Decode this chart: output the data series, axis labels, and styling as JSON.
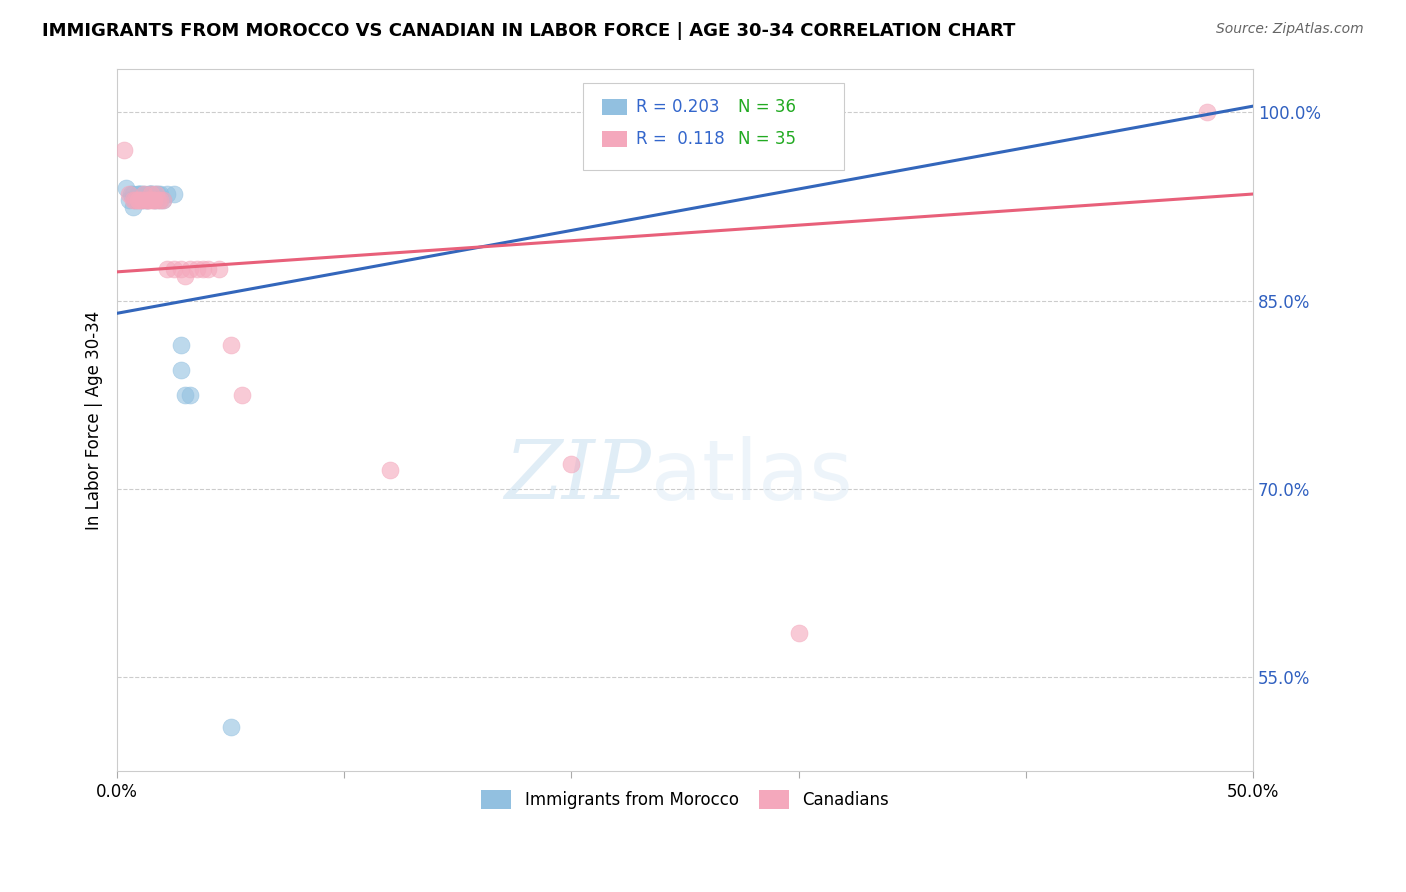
{
  "title": "IMMIGRANTS FROM MOROCCO VS CANADIAN IN LABOR FORCE | AGE 30-34 CORRELATION CHART",
  "source": "Source: ZipAtlas.com",
  "ylabel": "In Labor Force | Age 30-34",
  "ytick_labels": [
    "100.0%",
    "85.0%",
    "70.0%",
    "55.0%"
  ],
  "ytick_values": [
    1.0,
    0.85,
    0.7,
    0.55
  ],
  "xlim": [
    0.0,
    0.5
  ],
  "ylim": [
    0.475,
    1.035
  ],
  "blue_R": 0.203,
  "blue_N": 36,
  "pink_R": 0.118,
  "pink_N": 35,
  "blue_color": "#92c0e0",
  "pink_color": "#f4a8bc",
  "trendline_blue": "#3366bb",
  "trendline_pink": "#e8607a",
  "legend_blue_label": "Immigrants from Morocco",
  "legend_pink_label": "Canadians",
  "watermark_zip": "ZIP",
  "watermark_atlas": "atlas",
  "blue_scatter_x": [
    0.004,
    0.005,
    0.006,
    0.007,
    0.007,
    0.008,
    0.009,
    0.009,
    0.01,
    0.01,
    0.011,
    0.011,
    0.012,
    0.012,
    0.013,
    0.013,
    0.014,
    0.014,
    0.015,
    0.015,
    0.015,
    0.016,
    0.016,
    0.017,
    0.017,
    0.018,
    0.019,
    0.019,
    0.02,
    0.022,
    0.025,
    0.028,
    0.028,
    0.03,
    0.032,
    0.05
  ],
  "blue_scatter_y": [
    0.94,
    0.93,
    0.935,
    0.935,
    0.925,
    0.93,
    0.935,
    0.935,
    0.935,
    0.935,
    0.935,
    0.93,
    0.935,
    0.93,
    0.93,
    0.93,
    0.935,
    0.935,
    0.935,
    0.935,
    0.935,
    0.935,
    0.93,
    0.935,
    0.93,
    0.935,
    0.93,
    0.935,
    0.93,
    0.935,
    0.935,
    0.815,
    0.795,
    0.775,
    0.775,
    0.51
  ],
  "pink_scatter_x": [
    0.003,
    0.005,
    0.007,
    0.008,
    0.009,
    0.009,
    0.01,
    0.011,
    0.012,
    0.013,
    0.013,
    0.014,
    0.015,
    0.015,
    0.016,
    0.016,
    0.017,
    0.018,
    0.019,
    0.02,
    0.022,
    0.025,
    0.028,
    0.03,
    0.032,
    0.035,
    0.038,
    0.04,
    0.045,
    0.05,
    0.055,
    0.12,
    0.2,
    0.3,
    0.48
  ],
  "pink_scatter_y": [
    0.97,
    0.935,
    0.93,
    0.93,
    0.93,
    0.93,
    0.93,
    0.93,
    0.935,
    0.93,
    0.93,
    0.93,
    0.935,
    0.93,
    0.93,
    0.93,
    0.935,
    0.93,
    0.93,
    0.93,
    0.875,
    0.875,
    0.875,
    0.87,
    0.875,
    0.875,
    0.875,
    0.875,
    0.875,
    0.815,
    0.775,
    0.715,
    0.72,
    0.585,
    1.0
  ],
  "blue_line_x0": 0.0,
  "blue_line_x1": 0.5,
  "blue_line_y0": 0.84,
  "blue_line_y1": 1.005,
  "pink_line_x0": 0.0,
  "pink_line_x1": 0.5,
  "pink_line_y0": 0.873,
  "pink_line_y1": 0.935
}
